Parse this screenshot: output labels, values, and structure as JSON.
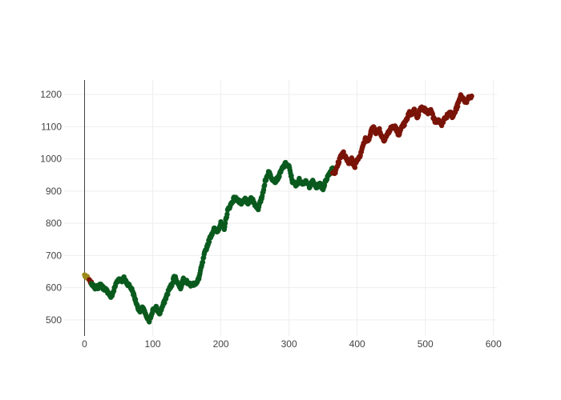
{
  "chart_data": {
    "type": "scatter",
    "title": "",
    "xlabel": "",
    "ylabel": "",
    "xlim": [
      -30,
      605
    ],
    "ylim": [
      450,
      1245
    ],
    "x_ticks": [
      0,
      100,
      200,
      300,
      400,
      500,
      600
    ],
    "y_ticks": [
      500,
      600,
      700,
      800,
      900,
      1000,
      1100,
      1200
    ],
    "grid": true,
    "legend": "none",
    "colors": {
      "initial": "#9a8a1a",
      "green": "#0a5a1e",
      "red": "#7a1408"
    },
    "series": [
      {
        "color_key": "initial",
        "x": [
          0,
          1,
          2,
          3,
          4,
          5,
          6
        ],
        "y": [
          640,
          634,
          637,
          631,
          635,
          628,
          626
        ]
      },
      {
        "color_key": "red",
        "x": [
          7,
          8,
          9,
          10
        ],
        "y": [
          625,
          620,
          614,
          618
        ]
      },
      {
        "color_key": "green",
        "keypoints": [
          [
            10,
            612
          ],
          [
            14,
            600
          ],
          [
            20,
            602
          ],
          [
            24,
            610
          ],
          [
            27,
            600
          ],
          [
            31,
            594
          ],
          [
            35,
            585
          ],
          [
            39,
            570
          ],
          [
            43,
            592
          ],
          [
            47,
            618
          ],
          [
            51,
            628
          ],
          [
            55,
            622
          ],
          [
            58,
            630
          ],
          [
            62,
            615
          ],
          [
            66,
            606
          ],
          [
            70,
            592
          ],
          [
            74,
            565
          ],
          [
            78,
            540
          ],
          [
            82,
            525
          ],
          [
            86,
            540
          ],
          [
            90,
            512
          ],
          [
            95,
            495
          ],
          [
            100,
            530
          ],
          [
            105,
            538
          ],
          [
            110,
            520
          ],
          [
            116,
            550
          ],
          [
            120,
            572
          ],
          [
            124,
            595
          ],
          [
            128,
            610
          ],
          [
            132,
            638
          ],
          [
            136,
            618
          ],
          [
            141,
            600
          ],
          [
            145,
            628
          ],
          [
            150,
            618
          ],
          [
            155,
            608
          ],
          [
            160,
            612
          ],
          [
            165,
            615
          ],
          [
            168,
            632
          ],
          [
            172,
            668
          ],
          [
            176,
            705
          ],
          [
            180,
            730
          ],
          [
            185,
            760
          ],
          [
            190,
            782
          ],
          [
            195,
            776
          ],
          [
            200,
            800
          ],
          [
            205,
            785
          ],
          [
            210,
            840
          ],
          [
            215,
            860
          ],
          [
            220,
            880
          ],
          [
            225,
            872
          ],
          [
            230,
            858
          ],
          [
            235,
            875
          ],
          [
            240,
            862
          ],
          [
            245,
            880
          ],
          [
            250,
            858
          ],
          [
            255,
            846
          ],
          [
            260,
            880
          ],
          [
            265,
            930
          ],
          [
            270,
            960
          ],
          [
            275,
            940
          ],
          [
            280,
            930
          ],
          [
            285,
            945
          ],
          [
            290,
            970
          ],
          [
            295,
            985
          ],
          [
            300,
            975
          ],
          [
            305,
            930
          ],
          [
            310,
            918
          ],
          [
            315,
            935
          ],
          [
            320,
            925
          ],
          [
            325,
            928
          ],
          [
            330,
            915
          ],
          [
            335,
            930
          ],
          [
            340,
            910
          ],
          [
            345,
            922
          ],
          [
            350,
            908
          ],
          [
            355,
            938
          ],
          [
            360,
            958
          ],
          [
            364,
            972
          ]
        ],
        "step": 0.7,
        "noise": 5
      },
      {
        "color_key": "red",
        "keypoints": [
          [
            364,
            960
          ],
          [
            368,
            958
          ],
          [
            372,
            985
          ],
          [
            376,
            1010
          ],
          [
            380,
            1018
          ],
          [
            384,
            998
          ],
          [
            388,
            990
          ],
          [
            392,
            998
          ],
          [
            396,
            975
          ],
          [
            400,
            1000
          ],
          [
            404,
            1010
          ],
          [
            408,
            1040
          ],
          [
            412,
            1060
          ],
          [
            416,
            1055
          ],
          [
            420,
            1085
          ],
          [
            424,
            1100
          ],
          [
            428,
            1080
          ],
          [
            432,
            1095
          ],
          [
            436,
            1070
          ],
          [
            440,
            1060
          ],
          [
            444,
            1075
          ],
          [
            448,
            1090
          ],
          [
            452,
            1100
          ],
          [
            456,
            1098
          ],
          [
            460,
            1075
          ],
          [
            464,
            1090
          ],
          [
            468,
            1105
          ],
          [
            472,
            1118
          ],
          [
            476,
            1142
          ],
          [
            480,
            1140
          ],
          [
            484,
            1152
          ],
          [
            488,
            1130
          ],
          [
            492,
            1152
          ],
          [
            496,
            1160
          ],
          [
            500,
            1150
          ],
          [
            504,
            1145
          ],
          [
            508,
            1148
          ],
          [
            512,
            1128
          ],
          [
            516,
            1112
          ],
          [
            520,
            1120
          ],
          [
            524,
            1108
          ],
          [
            528,
            1125
          ],
          [
            532,
            1135
          ],
          [
            536,
            1148
          ],
          [
            540,
            1130
          ],
          [
            544,
            1148
          ],
          [
            548,
            1170
          ],
          [
            552,
            1195
          ],
          [
            556,
            1185
          ],
          [
            560,
            1178
          ],
          [
            564,
            1188
          ],
          [
            568,
            1195
          ]
        ],
        "step": 0.7,
        "noise": 6
      }
    ]
  }
}
